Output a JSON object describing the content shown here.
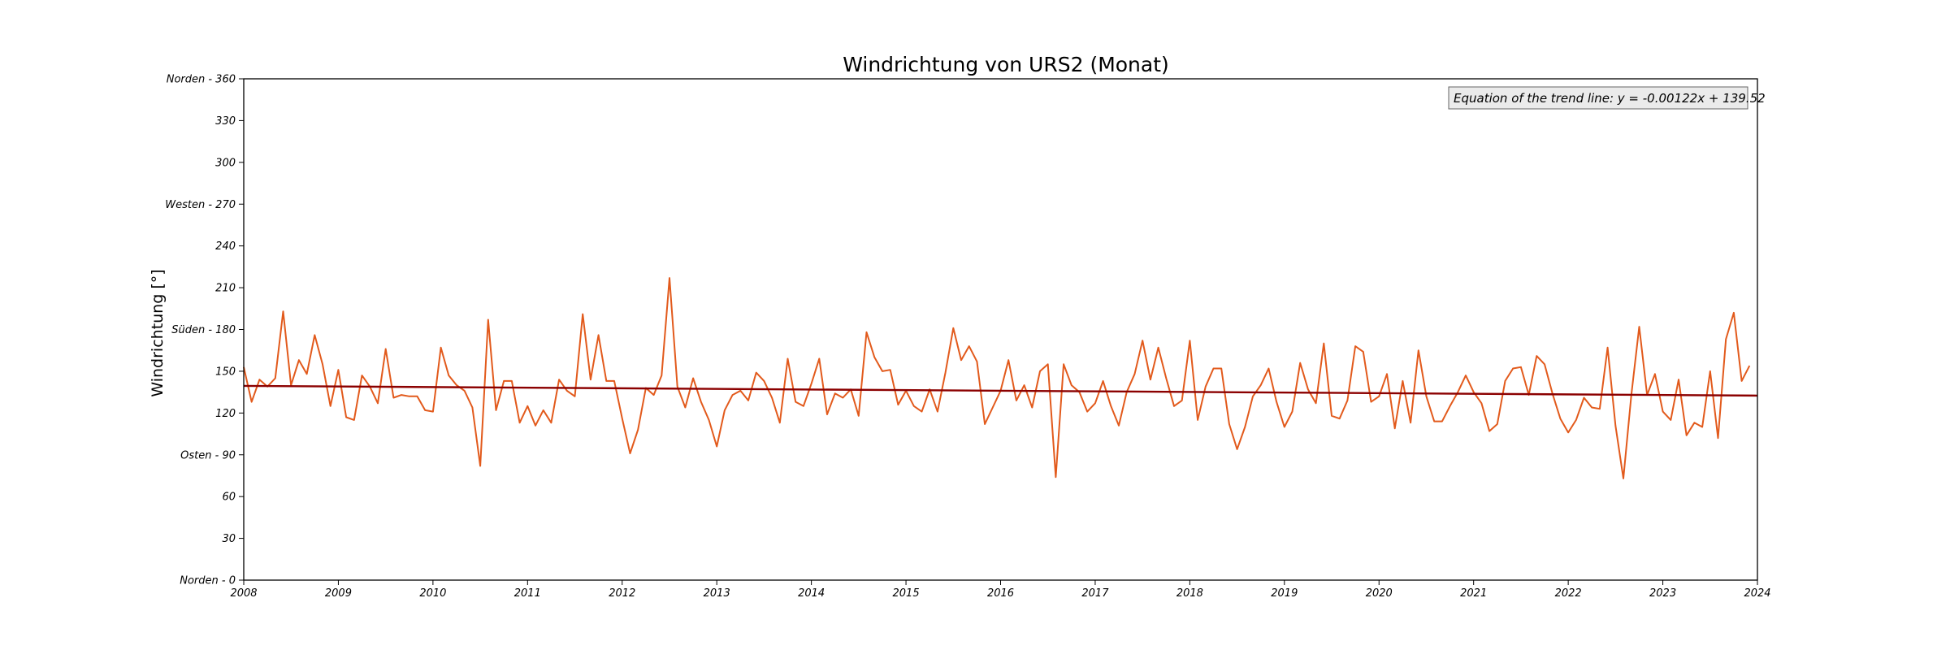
{
  "chart_data": {
    "type": "line",
    "title": "Windrichtung von URS2 (Monat)",
    "ylabel": "Windrichtung [°]",
    "xlabel": "",
    "xlim": [
      2008,
      2024
    ],
    "ylim": [
      0,
      360
    ],
    "x_ticks": [
      "2008",
      "2009",
      "2010",
      "2011",
      "2012",
      "2013",
      "2014",
      "2015",
      "2016",
      "2017",
      "2018",
      "2019",
      "2020",
      "2021",
      "2022",
      "2023",
      "2024"
    ],
    "y_ticks": [
      {
        "value": 0,
        "label": "Norden - 0"
      },
      {
        "value": 30,
        "label": "30"
      },
      {
        "value": 60,
        "label": "60"
      },
      {
        "value": 90,
        "label": "Osten - 90"
      },
      {
        "value": 120,
        "label": "120"
      },
      {
        "value": 150,
        "label": "150"
      },
      {
        "value": 180,
        "label": "Süden - 180"
      },
      {
        "value": 210,
        "label": "210"
      },
      {
        "value": 240,
        "label": "240"
      },
      {
        "value": 270,
        "label": "Westen - 270"
      },
      {
        "value": 300,
        "label": "300"
      },
      {
        "value": 330,
        "label": "330"
      },
      {
        "value": 360,
        "label": "Norden - 360"
      }
    ],
    "grid": false,
    "legend_placement": "top-right",
    "annotation": "Equation of the trend line: y = -0.00122x + 139.52",
    "series": [
      {
        "color": "#e25a1c",
        "start": "2008-01",
        "step": "month",
        "values": [
          153,
          128,
          144,
          139,
          145,
          193,
          140,
          158,
          148,
          176,
          155,
          125,
          151,
          117,
          115,
          147,
          139,
          127,
          166,
          131,
          133,
          132,
          132,
          122,
          121,
          167,
          147,
          140,
          136,
          124,
          82,
          187,
          122,
          143,
          143,
          113,
          125,
          111,
          122,
          113,
          144,
          136,
          132,
          191,
          144,
          176,
          143,
          143,
          116,
          91,
          108,
          138,
          133,
          147,
          217,
          139,
          124,
          145,
          128,
          115,
          96,
          122,
          133,
          136,
          129,
          149,
          143,
          131,
          113,
          159,
          128,
          125,
          141,
          159,
          119,
          134,
          131,
          137,
          118,
          178,
          160,
          150,
          151,
          126,
          136,
          125,
          121,
          137,
          121,
          149,
          181,
          158,
          168,
          157,
          112,
          124,
          136,
          158,
          129,
          140,
          124,
          150,
          155,
          74,
          155,
          140,
          135,
          121,
          127,
          143,
          125,
          111,
          135,
          148,
          172,
          144,
          167,
          145,
          125,
          129,
          172,
          115,
          139,
          152,
          152,
          112,
          94,
          110,
          132,
          140,
          152,
          128,
          110,
          121,
          156,
          137,
          127,
          170,
          118,
          116,
          129,
          168,
          164,
          128,
          132,
          148,
          109,
          143,
          113,
          165,
          132,
          114,
          114,
          125,
          135,
          147,
          135,
          127,
          107,
          112,
          143,
          152,
          153,
          133,
          161,
          155,
          134,
          116,
          106,
          115,
          131,
          124,
          123,
          167,
          111,
          73,
          133,
          182,
          133,
          148,
          121,
          115,
          144,
          104,
          113,
          110,
          150,
          102,
          173,
          192,
          143,
          154
        ]
      },
      {
        "color": "#8b0000",
        "trend": true,
        "x": [
          2008,
          2024
        ],
        "values": [
          139.52,
          132.5
        ]
      }
    ]
  }
}
